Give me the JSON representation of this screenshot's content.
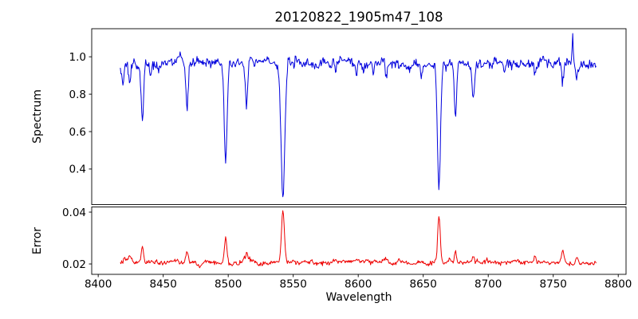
{
  "figure": {
    "title": "20120822_1905m47_108",
    "xlabel": "Wavelength",
    "background": "#ffffff"
  },
  "chart_data": [
    {
      "type": "line",
      "name": "spectrum",
      "ylabel": "Spectrum",
      "color": "#0000dd",
      "xlim": [
        8395,
        8806
      ],
      "ylim": [
        0.21,
        1.15
      ],
      "xticks": [
        8400,
        8450,
        8500,
        8550,
        8600,
        8650,
        8700,
        8750,
        8800
      ],
      "xtick_labels": [
        "8400",
        "8450",
        "8500",
        "8550",
        "8600",
        "8650",
        "8700",
        "8750",
        "8800"
      ],
      "yticks": [
        0.4,
        0.6,
        0.8,
        1.0
      ],
      "ytick_labels": [
        "0.4",
        "0.6",
        "0.8",
        "1.0"
      ],
      "x_start": 8417,
      "x_end": 8783,
      "x_step": 0.5,
      "continuum": 0.965,
      "noise_sigma": 0.011,
      "wiggle_amp": 0.012,
      "absorption_lines": [
        {
          "center": 8419.0,
          "depth": 0.09,
          "sigma": 0.9
        },
        {
          "center": 8424.1,
          "depth": 0.1,
          "sigma": 0.8
        },
        {
          "center": 8434.0,
          "depth": 0.31,
          "sigma": 0.9
        },
        {
          "center": 8440.3,
          "depth": 0.09,
          "sigma": 0.7
        },
        {
          "center": 8446.4,
          "depth": 0.07,
          "sigma": 0.7
        },
        {
          "center": 8468.4,
          "depth": 0.25,
          "sigma": 0.9
        },
        {
          "center": 8498.0,
          "depth": 0.52,
          "sigma": 1.1
        },
        {
          "center": 8514.1,
          "depth": 0.23,
          "sigma": 0.9
        },
        {
          "center": 8542.1,
          "depth": 0.7,
          "sigma": 1.4
        },
        {
          "center": 8582.3,
          "depth": 0.07,
          "sigma": 0.7
        },
        {
          "center": 8598.8,
          "depth": 0.06,
          "sigma": 0.7
        },
        {
          "center": 8611.8,
          "depth": 0.05,
          "sigma": 0.7
        },
        {
          "center": 8621.6,
          "depth": 0.09,
          "sigma": 0.8
        },
        {
          "center": 8648.5,
          "depth": 0.06,
          "sigma": 0.7
        },
        {
          "center": 8662.1,
          "depth": 0.66,
          "sigma": 1.2
        },
        {
          "center": 8674.8,
          "depth": 0.3,
          "sigma": 0.9
        },
        {
          "center": 8688.6,
          "depth": 0.19,
          "sigma": 0.9
        },
        {
          "center": 8712.7,
          "depth": 0.06,
          "sigma": 0.7
        },
        {
          "center": 8736.0,
          "depth": 0.07,
          "sigma": 0.7
        },
        {
          "center": 8757.2,
          "depth": 0.1,
          "sigma": 0.8
        },
        {
          "center": 8768.0,
          "depth": 0.08,
          "sigma": 0.7
        }
      ],
      "peaks": [
        {
          "center": 8765.0,
          "height": 0.14,
          "sigma": 0.5
        }
      ]
    },
    {
      "type": "line",
      "name": "error",
      "ylabel": "Error",
      "color": "#ee0000",
      "xlim": [
        8395,
        8806
      ],
      "ylim": [
        0.016,
        0.042
      ],
      "xticks": [
        8400,
        8450,
        8500,
        8550,
        8600,
        8650,
        8700,
        8750,
        8800
      ],
      "xtick_labels": [
        "8400",
        "8450",
        "8500",
        "8550",
        "8600",
        "8650",
        "8700",
        "8750",
        "8800"
      ],
      "yticks": [
        0.02,
        0.04
      ],
      "ytick_labels": [
        "0.02",
        "0.04"
      ],
      "x_start": 8417,
      "x_end": 8783,
      "x_step": 0.5,
      "baseline": 0.0205,
      "noise_sigma": 0.00035,
      "wiggle_amp": 0.0005,
      "peaks": [
        {
          "center": 8419.5,
          "height": 0.0018,
          "sigma": 1.5
        },
        {
          "center": 8424.1,
          "height": 0.0025,
          "sigma": 0.9
        },
        {
          "center": 8434.0,
          "height": 0.005,
          "sigma": 0.9
        },
        {
          "center": 8468.4,
          "height": 0.0035,
          "sigma": 0.9
        },
        {
          "center": 8498.0,
          "height": 0.0105,
          "sigma": 1.0
        },
        {
          "center": 8514.1,
          "height": 0.003,
          "sigma": 0.9
        },
        {
          "center": 8542.1,
          "height": 0.0205,
          "sigma": 1.1
        },
        {
          "center": 8621.6,
          "height": 0.0012,
          "sigma": 0.8
        },
        {
          "center": 8662.1,
          "height": 0.0175,
          "sigma": 1.0
        },
        {
          "center": 8674.8,
          "height": 0.004,
          "sigma": 0.9
        },
        {
          "center": 8688.6,
          "height": 0.0025,
          "sigma": 0.9
        },
        {
          "center": 8712.7,
          "height": 0.001,
          "sigma": 0.8
        },
        {
          "center": 8736.0,
          "height": 0.0015,
          "sigma": 0.8
        },
        {
          "center": 8757.2,
          "height": 0.004,
          "sigma": 1.0
        },
        {
          "center": 8768.0,
          "height": 0.003,
          "sigma": 0.9
        }
      ]
    }
  ]
}
